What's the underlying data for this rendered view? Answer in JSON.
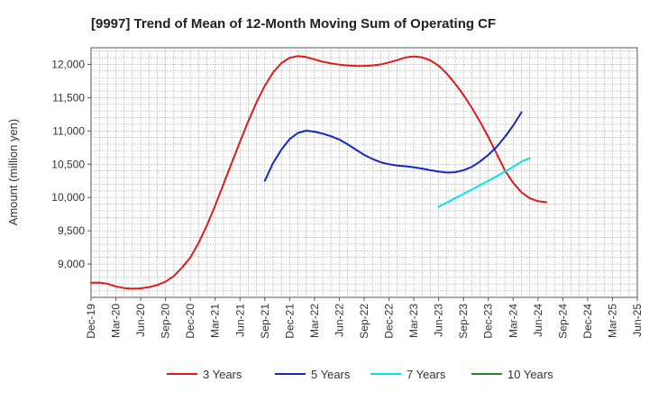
{
  "chart_data": {
    "type": "line",
    "title": "[9997]  Trend of Mean of 12-Month Moving Sum of Operating CF",
    "xlabel": "",
    "ylabel": "Amount (million yen)",
    "ylim": [
      8500,
      12250
    ],
    "yticks": [
      9000,
      9500,
      10000,
      10500,
      11000,
      11500,
      12000
    ],
    "ytick_labels": [
      "9,000",
      "9,500",
      "10,000",
      "10,500",
      "11,000",
      "11,500",
      "12,000"
    ],
    "xlim": [
      0,
      66
    ],
    "xtick_positions": [
      0,
      3,
      6,
      9,
      12,
      15,
      18,
      21,
      24,
      27,
      30,
      33,
      36,
      39,
      42,
      45,
      48,
      51,
      54,
      57,
      60,
      63,
      66
    ],
    "xtick_labels": [
      "Dec-19",
      "Mar-20",
      "Jun-20",
      "Sep-20",
      "Dec-20",
      "Mar-21",
      "Jun-21",
      "Sep-21",
      "Dec-21",
      "Mar-22",
      "Jun-22",
      "Sep-22",
      "Dec-22",
      "Mar-23",
      "Jun-23",
      "Sep-23",
      "Dec-23",
      "Mar-24",
      "Jun-24",
      "Sep-24",
      "Dec-24",
      "Mar-25",
      "Jun-25"
    ],
    "grid": true,
    "legend_position": "bottom",
    "series": [
      {
        "name": "3 Years",
        "color": "#e31a1c",
        "points": [
          [
            0,
            8720
          ],
          [
            1,
            8722
          ],
          [
            2,
            8705
          ],
          [
            3,
            8665
          ],
          [
            4,
            8640
          ],
          [
            5,
            8630
          ],
          [
            6,
            8635
          ],
          [
            7,
            8655
          ],
          [
            8,
            8685
          ],
          [
            9,
            8735
          ],
          [
            10,
            8820
          ],
          [
            11,
            8950
          ],
          [
            12,
            9100
          ],
          [
            13,
            9320
          ],
          [
            14,
            9580
          ],
          [
            15,
            9880
          ],
          [
            16,
            10200
          ],
          [
            17,
            10520
          ],
          [
            18,
            10840
          ],
          [
            19,
            11150
          ],
          [
            20,
            11430
          ],
          [
            21,
            11680
          ],
          [
            22,
            11880
          ],
          [
            23,
            12020
          ],
          [
            24,
            12100
          ],
          [
            25,
            12125
          ],
          [
            26,
            12110
          ],
          [
            27,
            12075
          ],
          [
            28,
            12040
          ],
          [
            29,
            12015
          ],
          [
            30,
            11995
          ],
          [
            31,
            11985
          ],
          [
            32,
            11975
          ],
          [
            33,
            11975
          ],
          [
            34,
            11985
          ],
          [
            35,
            12000
          ],
          [
            36,
            12030
          ],
          [
            37,
            12065
          ],
          [
            38,
            12105
          ],
          [
            39,
            12120
          ],
          [
            40,
            12105
          ],
          [
            41,
            12060
          ],
          [
            42,
            11980
          ],
          [
            43,
            11860
          ],
          [
            44,
            11710
          ],
          [
            45,
            11540
          ],
          [
            46,
            11350
          ],
          [
            47,
            11140
          ],
          [
            48,
            10910
          ],
          [
            49,
            10660
          ],
          [
            50,
            10410
          ],
          [
            51,
            10220
          ],
          [
            52,
            10080
          ],
          [
            53,
            9990
          ],
          [
            54,
            9945
          ],
          [
            55,
            9930
          ]
        ]
      },
      {
        "name": "5 Years",
        "color": "#1428c8",
        "points": [
          [
            21,
            10250
          ],
          [
            22,
            10520
          ],
          [
            23,
            10720
          ],
          [
            24,
            10880
          ],
          [
            25,
            10970
          ],
          [
            26,
            11005
          ],
          [
            27,
            10990
          ],
          [
            28,
            10960
          ],
          [
            29,
            10920
          ],
          [
            30,
            10870
          ],
          [
            31,
            10800
          ],
          [
            32,
            10720
          ],
          [
            33,
            10640
          ],
          [
            34,
            10580
          ],
          [
            35,
            10530
          ],
          [
            36,
            10500
          ],
          [
            37,
            10480
          ],
          [
            38,
            10470
          ],
          [
            39,
            10455
          ],
          [
            40,
            10435
          ],
          [
            41,
            10410
          ],
          [
            42,
            10390
          ],
          [
            43,
            10375
          ],
          [
            44,
            10380
          ],
          [
            45,
            10410
          ],
          [
            46,
            10460
          ],
          [
            47,
            10540
          ],
          [
            48,
            10640
          ],
          [
            49,
            10760
          ],
          [
            50,
            10910
          ],
          [
            51,
            11080
          ],
          [
            52,
            11280
          ]
        ]
      },
      {
        "name": "7 Years",
        "color": "#00e5ee",
        "points": [
          [
            42,
            9860
          ],
          [
            43,
            9925
          ],
          [
            44,
            9990
          ],
          [
            45,
            10055
          ],
          [
            46,
            10120
          ],
          [
            47,
            10185
          ],
          [
            48,
            10250
          ],
          [
            49,
            10320
          ],
          [
            50,
            10390
          ],
          [
            51,
            10460
          ],
          [
            52,
            10540
          ],
          [
            53,
            10590
          ]
        ]
      },
      {
        "name": "10 Years",
        "color": "#228b22",
        "points": []
      }
    ]
  }
}
